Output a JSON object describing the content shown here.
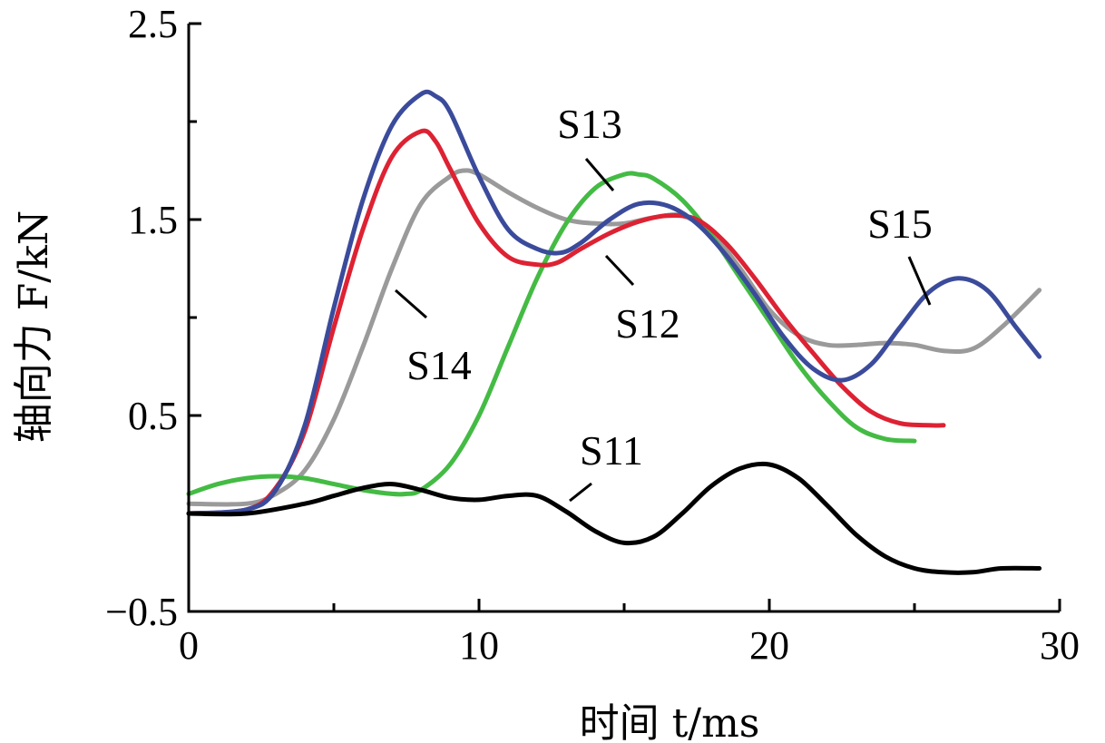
{
  "chart_data": {
    "type": "line",
    "xlabel": "时间 t/ms",
    "ylabel": "轴向力 F/kN",
    "xlim": [
      0,
      30
    ],
    "ylim": [
      -0.5,
      2.5
    ],
    "x_ticks": [
      0,
      10,
      20,
      30
    ],
    "x_minor_ticks": [
      5,
      15,
      25
    ],
    "y_ticks": [
      -0.5,
      0.5,
      1.5,
      2.5
    ],
    "y_minor_ticks": [
      0,
      1,
      2
    ],
    "y_tick_labels": [
      "−0.5",
      "0.5",
      "1.5",
      "2.5"
    ],
    "x_tick_labels": [
      "0",
      "10",
      "20",
      "30"
    ],
    "grid": false,
    "legend": "none (direct labels with leader lines)",
    "series": [
      {
        "name": "S11",
        "color": "#000000",
        "x": [
          0,
          2,
          4,
          5,
          6,
          7,
          8,
          9,
          10,
          11,
          12,
          13,
          14,
          15,
          16,
          17,
          18,
          19,
          20,
          21,
          22,
          23,
          24,
          25,
          26,
          27,
          28,
          29.3
        ],
        "y": [
          0.0,
          0.0,
          0.05,
          0.09,
          0.13,
          0.15,
          0.12,
          0.08,
          0.07,
          0.09,
          0.09,
          0.01,
          -0.09,
          -0.15,
          -0.12,
          0.0,
          0.14,
          0.23,
          0.25,
          0.18,
          0.04,
          -0.11,
          -0.22,
          -0.28,
          -0.3,
          -0.3,
          -0.28,
          -0.28
        ]
      },
      {
        "name": "S12",
        "color": "#dd2233",
        "x": [
          0,
          2,
          3,
          4,
          5,
          6,
          7,
          8,
          8.5,
          9,
          10,
          11,
          12,
          12.7,
          13.5,
          14.5,
          15.5,
          16.5,
          17.5,
          18.5,
          19.5,
          20.5,
          21.5,
          22.5,
          23.5,
          24.5,
          25.5,
          26
        ],
        "y": [
          0.0,
          0.02,
          0.13,
          0.42,
          0.95,
          1.45,
          1.82,
          1.95,
          1.9,
          1.76,
          1.48,
          1.31,
          1.27,
          1.28,
          1.35,
          1.43,
          1.49,
          1.52,
          1.5,
          1.38,
          1.2,
          1.0,
          0.82,
          0.65,
          0.52,
          0.46,
          0.45,
          0.45
        ]
      },
      {
        "name": "S13",
        "color": "#44bb44",
        "x": [
          0,
          1,
          2,
          3,
          4,
          5,
          6,
          7,
          7.5,
          8,
          9,
          10,
          11,
          12,
          13,
          14,
          15,
          15.5,
          16,
          17,
          18,
          19,
          20,
          21,
          22,
          23,
          24,
          25
        ],
        "y": [
          0.1,
          0.15,
          0.18,
          0.19,
          0.18,
          0.15,
          0.12,
          0.1,
          0.1,
          0.12,
          0.25,
          0.5,
          0.85,
          1.2,
          1.48,
          1.66,
          1.73,
          1.73,
          1.71,
          1.6,
          1.42,
          1.2,
          0.98,
          0.76,
          0.58,
          0.44,
          0.38,
          0.37
        ]
      },
      {
        "name": "S14",
        "color": "#9a9a9a",
        "x": [
          0,
          2,
          3,
          4,
          5,
          6,
          7,
          8,
          9,
          9.5,
          10,
          11,
          12,
          13,
          14,
          15,
          16,
          17,
          18,
          19,
          20,
          21,
          22,
          23,
          24,
          25,
          26,
          27,
          28,
          29.3
        ],
        "y": [
          0.05,
          0.05,
          0.1,
          0.22,
          0.48,
          0.85,
          1.25,
          1.58,
          1.72,
          1.75,
          1.73,
          1.64,
          1.56,
          1.5,
          1.48,
          1.48,
          1.51,
          1.52,
          1.43,
          1.25,
          1.04,
          0.91,
          0.86,
          0.86,
          0.87,
          0.86,
          0.83,
          0.84,
          0.95,
          1.14
        ]
      },
      {
        "name": "S15",
        "color": "#3b4b9b",
        "x": [
          0,
          2,
          3,
          4,
          5,
          6,
          7,
          8,
          8.5,
          9,
          10,
          11,
          12,
          12.8,
          13.5,
          14.5,
          15.5,
          16.5,
          17.5,
          18.5,
          19.5,
          20.5,
          21.5,
          22.5,
          23.5,
          24.5,
          25.5,
          26.5,
          27.5,
          28.5,
          29.3
        ],
        "y": [
          0.0,
          0.02,
          0.12,
          0.45,
          1.05,
          1.6,
          1.98,
          2.14,
          2.13,
          2.05,
          1.72,
          1.45,
          1.35,
          1.33,
          1.38,
          1.5,
          1.58,
          1.57,
          1.48,
          1.32,
          1.12,
          0.9,
          0.74,
          0.68,
          0.76,
          0.95,
          1.13,
          1.2,
          1.14,
          0.95,
          0.8
        ]
      }
    ],
    "annotations": [
      {
        "text": "S11",
        "series": "S11"
      },
      {
        "text": "S12",
        "series": "S12"
      },
      {
        "text": "S13",
        "series": "S13"
      },
      {
        "text": "S14",
        "series": "S14"
      },
      {
        "text": "S15",
        "series": "S15"
      }
    ]
  }
}
